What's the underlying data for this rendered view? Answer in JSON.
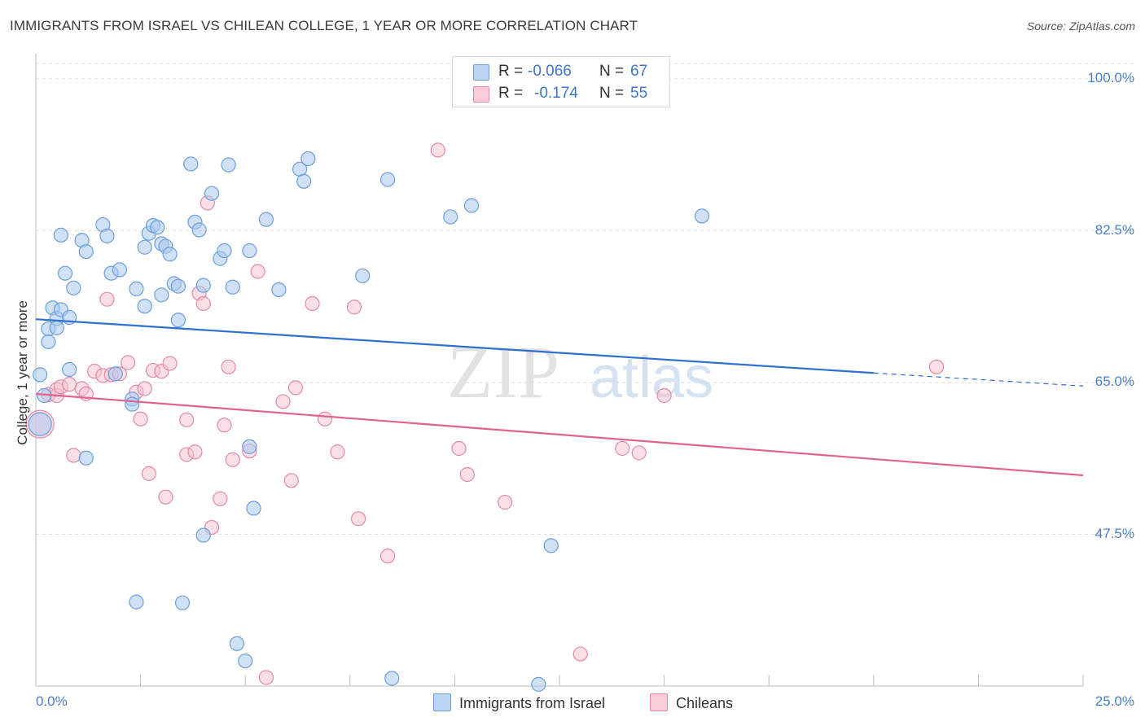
{
  "title": "IMMIGRANTS FROM ISRAEL VS CHILEAN COLLEGE, 1 YEAR OR MORE CORRELATION CHART",
  "source": "Source: ZipAtlas.com",
  "watermark": {
    "zip": "ZIP",
    "atlas": "atlas"
  },
  "stats": {
    "row1": {
      "r_label": "R =",
      "r_value": "-0.066",
      "n_label": "N =",
      "n_value": "67"
    },
    "row2": {
      "r_label": "R =",
      "r_value": "-0.174",
      "n_label": "N =",
      "n_value": "55"
    }
  },
  "legend": {
    "israel": "Immigrants from Israel",
    "chileans": "Chileans"
  },
  "colors": {
    "blue_fill": "#a9c8ee",
    "blue_stroke": "#6a9fdc",
    "blue_line": "#2f6fcf",
    "pink_fill": "#f5bfd0",
    "pink_stroke": "#e48aa7",
    "pink_line": "#e0638e",
    "axis_text": "#4a7fc9"
  },
  "chart_data": {
    "type": "scatter",
    "title": "IMMIGRANTS FROM ISRAEL VS CHILEAN COLLEGE, 1 YEAR OR MORE CORRELATION CHART",
    "xlabel": "",
    "ylabel": "College, 1 year or more",
    "xlim": [
      0,
      25
    ],
    "ylim": [
      30,
      100
    ],
    "x_tick_labels": {
      "left": "0.0%",
      "right": "25.0%"
    },
    "y_ticks": [
      {
        "value": 100,
        "label": "100.0%"
      },
      {
        "value": 82.5,
        "label": "82.5%"
      },
      {
        "value": 65,
        "label": "65.0%"
      },
      {
        "value": 47.5,
        "label": "47.5%"
      }
    ],
    "grid": true,
    "legend_position": "bottom-center",
    "series": [
      {
        "name": "Immigrants from Israel",
        "color": "#6a9fdc",
        "r": -0.066,
        "n": 67,
        "trend": {
          "x0": 0,
          "y0": 72.3,
          "x1": 20,
          "y1": 66.1,
          "dash_to_x": 25,
          "dash_to_y": 64.6
        },
        "points": [
          [
            0.1,
            65.9
          ],
          [
            0.1,
            60.2
          ],
          [
            0.2,
            63.5
          ],
          [
            0.3,
            69.7
          ],
          [
            0.3,
            71.2
          ],
          [
            0.4,
            73.6
          ],
          [
            0.5,
            72.4
          ],
          [
            0.5,
            71.3
          ],
          [
            0.6,
            73.4
          ],
          [
            0.6,
            82.0
          ],
          [
            0.7,
            77.6
          ],
          [
            0.8,
            72.5
          ],
          [
            0.8,
            66.5
          ],
          [
            0.9,
            75.9
          ],
          [
            1.1,
            81.4
          ],
          [
            1.2,
            80.1
          ],
          [
            1.2,
            56.3
          ],
          [
            1.6,
            83.2
          ],
          [
            1.7,
            81.9
          ],
          [
            1.8,
            77.6
          ],
          [
            1.9,
            66.0
          ],
          [
            2.0,
            78.0
          ],
          [
            2.3,
            63.1
          ],
          [
            2.3,
            62.5
          ],
          [
            2.4,
            75.8
          ],
          [
            2.4,
            39.7
          ],
          [
            2.6,
            73.8
          ],
          [
            2.6,
            80.6
          ],
          [
            2.7,
            82.2
          ],
          [
            2.8,
            83.1
          ],
          [
            2.9,
            82.9
          ],
          [
            3.0,
            81.0
          ],
          [
            3.0,
            75.1
          ],
          [
            3.1,
            80.7
          ],
          [
            3.2,
            79.8
          ],
          [
            3.3,
            76.4
          ],
          [
            3.4,
            72.2
          ],
          [
            3.4,
            76.1
          ],
          [
            3.5,
            39.6
          ],
          [
            3.7,
            90.2
          ],
          [
            3.8,
            83.5
          ],
          [
            3.9,
            82.6
          ],
          [
            4.0,
            76.2
          ],
          [
            4.0,
            47.4
          ],
          [
            4.2,
            86.8
          ],
          [
            4.4,
            79.3
          ],
          [
            4.5,
            80.2
          ],
          [
            4.6,
            90.1
          ],
          [
            4.7,
            76.0
          ],
          [
            4.8,
            34.9
          ],
          [
            5.0,
            32.9
          ],
          [
            5.1,
            80.2
          ],
          [
            5.1,
            57.6
          ],
          [
            5.2,
            50.5
          ],
          [
            5.5,
            83.8
          ],
          [
            5.8,
            75.7
          ],
          [
            6.3,
            89.6
          ],
          [
            6.4,
            88.2
          ],
          [
            6.5,
            90.8
          ],
          [
            7.8,
            77.3
          ],
          [
            8.4,
            88.4
          ],
          [
            8.5,
            30.9
          ],
          [
            9.9,
            84.1
          ],
          [
            10.4,
            85.4
          ],
          [
            12.0,
            30.2
          ],
          [
            12.3,
            46.2
          ],
          [
            15.9,
            84.2
          ]
        ]
      },
      {
        "name": "Chileans",
        "color": "#e48aa7",
        "r": -0.174,
        "n": 55,
        "trend": {
          "x0": 0,
          "y0": 63.7,
          "x1": 25,
          "y1": 54.3
        },
        "points": [
          [
            0.1,
            60.2
          ],
          [
            0.3,
            63.6
          ],
          [
            0.5,
            63.5
          ],
          [
            0.5,
            64.2
          ],
          [
            0.6,
            64.5
          ],
          [
            0.8,
            64.8
          ],
          [
            0.9,
            56.6
          ],
          [
            1.1,
            64.3
          ],
          [
            1.2,
            63.7
          ],
          [
            1.4,
            66.3
          ],
          [
            1.6,
            65.8
          ],
          [
            1.7,
            74.6
          ],
          [
            1.8,
            65.9
          ],
          [
            2.0,
            66.0
          ],
          [
            2.2,
            67.3
          ],
          [
            2.4,
            63.9
          ],
          [
            2.5,
            60.8
          ],
          [
            2.6,
            64.3
          ],
          [
            2.7,
            54.5
          ],
          [
            2.8,
            66.4
          ],
          [
            3.0,
            66.3
          ],
          [
            3.1,
            51.8
          ],
          [
            3.2,
            67.2
          ],
          [
            3.6,
            60.7
          ],
          [
            3.6,
            56.7
          ],
          [
            3.8,
            57.0
          ],
          [
            3.9,
            75.3
          ],
          [
            4.0,
            74.1
          ],
          [
            4.1,
            85.7
          ],
          [
            4.2,
            48.3
          ],
          [
            4.4,
            51.6
          ],
          [
            4.5,
            60.1
          ],
          [
            4.6,
            66.8
          ],
          [
            4.7,
            56.1
          ],
          [
            5.1,
            57.1
          ],
          [
            5.3,
            77.8
          ],
          [
            5.5,
            31.0
          ],
          [
            5.9,
            62.8
          ],
          [
            6.1,
            53.7
          ],
          [
            6.2,
            64.4
          ],
          [
            6.6,
            74.1
          ],
          [
            6.9,
            60.8
          ],
          [
            7.2,
            57.0
          ],
          [
            7.6,
            73.7
          ],
          [
            7.7,
            49.3
          ],
          [
            8.4,
            45.0
          ],
          [
            9.6,
            91.8
          ],
          [
            10.1,
            57.4
          ],
          [
            10.3,
            54.4
          ],
          [
            11.2,
            51.2
          ],
          [
            13.0,
            33.7
          ],
          [
            14.0,
            57.4
          ],
          [
            14.4,
            56.9
          ],
          [
            15.0,
            63.5
          ],
          [
            21.5,
            66.8
          ]
        ]
      }
    ]
  }
}
